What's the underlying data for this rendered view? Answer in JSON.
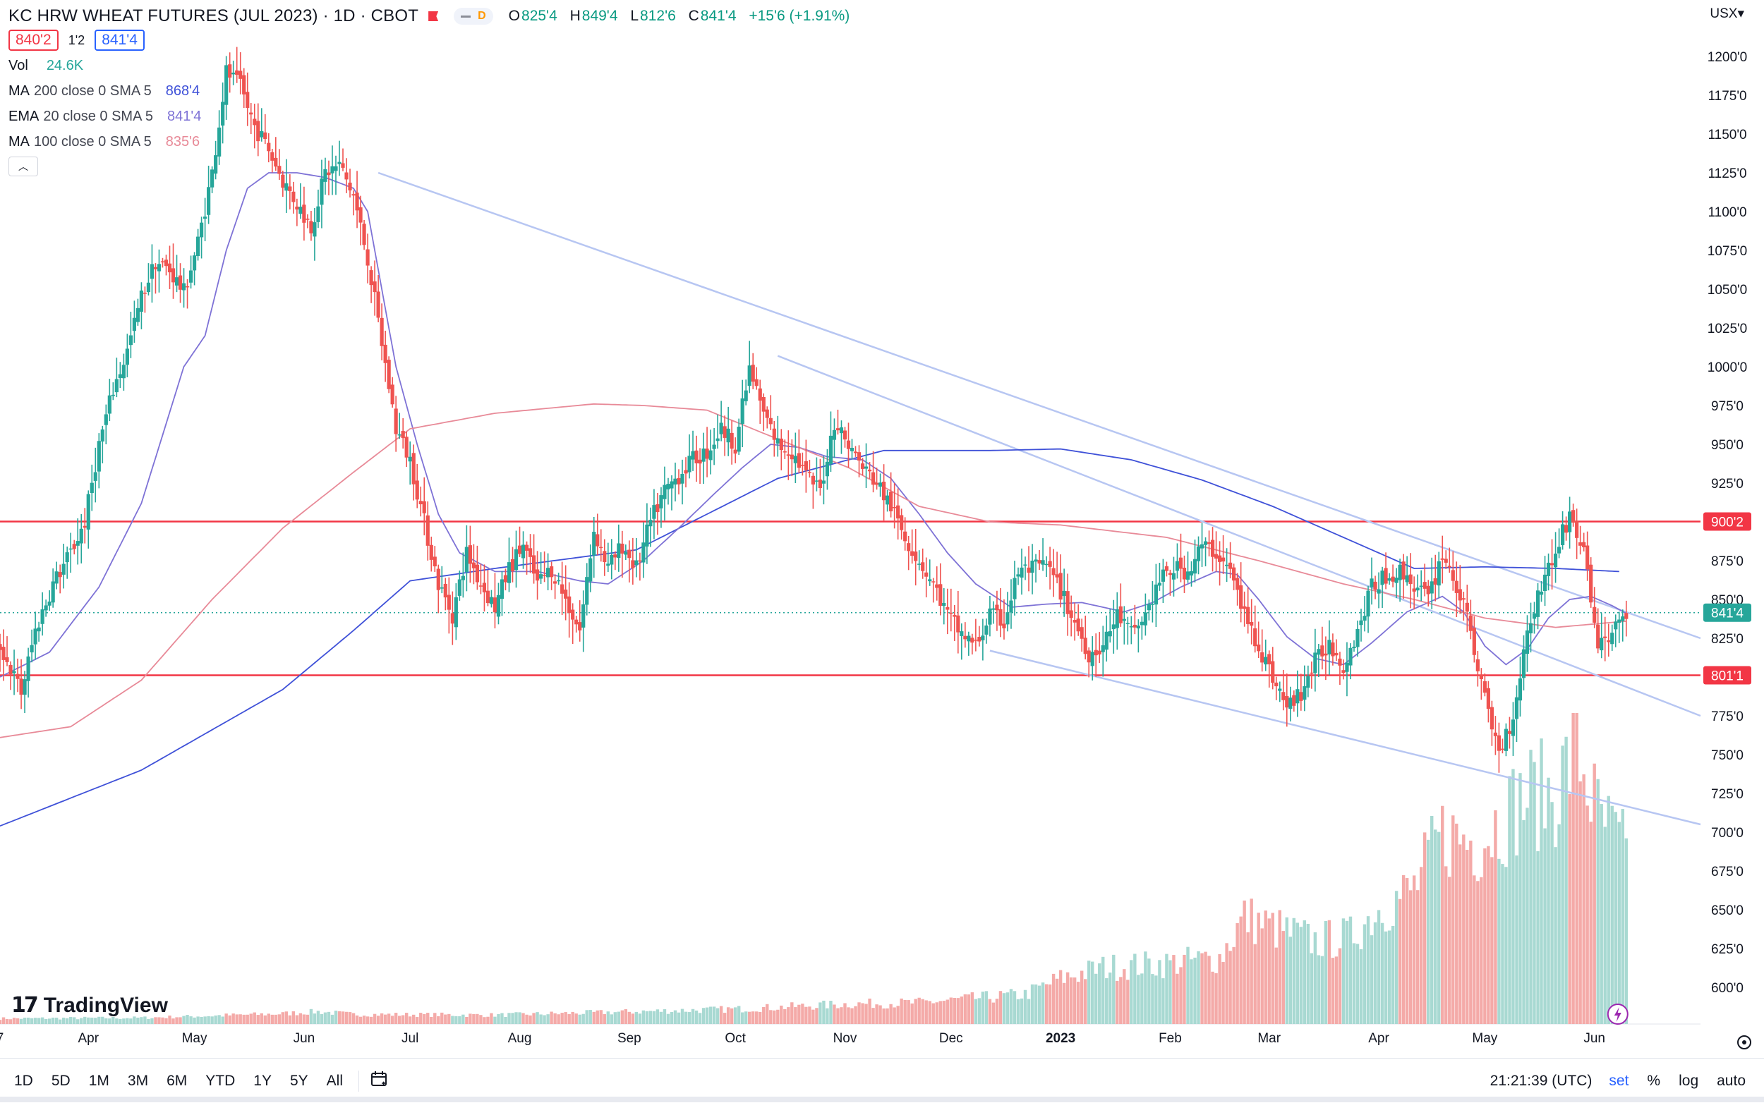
{
  "header": {
    "symbol_title": "KC HRW WHEAT FUTURES (JUL 2023) · 1D · CBOT",
    "pill_letter": "D",
    "ohlc": {
      "o_label": "O",
      "o": "825'4",
      "h_label": "H",
      "h": "849'4",
      "l_label": "L",
      "l": "812'6",
      "c_label": "C",
      "c": "841'4",
      "change": "+15'6 (+1.91%)"
    },
    "bid": "840'2",
    "spread": "1'2",
    "ask": "841'4",
    "currency": "USX▾"
  },
  "indicators": [
    {
      "label": "Vol",
      "params": "",
      "value": "24.6K",
      "color": "#26a69a"
    },
    {
      "label": "MA",
      "params": "200 close 0 SMA 5",
      "value": "868'4",
      "color": "#3f51d8"
    },
    {
      "label": "EMA",
      "params": "20 close 0 SMA 5",
      "value": "841'4",
      "color": "#7e72d6"
    },
    {
      "label": "MA",
      "params": "100 close 0 SMA 5",
      "value": "835'6",
      "color": "#e88a98"
    }
  ],
  "collapse_icon": "chevron-up",
  "brand": {
    "mark": "17",
    "name": "TradingView"
  },
  "bottom": {
    "ranges": [
      "1D",
      "5D",
      "1M",
      "3M",
      "6M",
      "YTD",
      "1Y",
      "5Y",
      "All"
    ],
    "time": "21:21:39 (UTC)",
    "options": [
      "set",
      "%",
      "log",
      "auto"
    ]
  },
  "colors": {
    "up": "#26a69a",
    "down": "#ef5350",
    "vol_up": "#a8d9d2",
    "vol_down": "#f4aaa8",
    "hline": "#f23645",
    "trend": "#b7c6f2"
  },
  "chart_data": {
    "type": "candlestick",
    "title": "KC HRW WHEAT FUTURES (JUL 2023) · 1D · CBOT",
    "price_unit": "USX (cents, eighths notation)",
    "ylim": [
      582,
      1233
    ],
    "y_ticks": [
      {
        "value": 1200,
        "label": "1200'0"
      },
      {
        "value": 1175,
        "label": "1175'0"
      },
      {
        "value": 1150,
        "label": "1150'0"
      },
      {
        "value": 1125,
        "label": "1125'0"
      },
      {
        "value": 1100,
        "label": "1100'0"
      },
      {
        "value": 1075,
        "label": "1075'0"
      },
      {
        "value": 1050,
        "label": "1050'0"
      },
      {
        "value": 1025,
        "label": "1025'0"
      },
      {
        "value": 1000,
        "label": "1000'0"
      },
      {
        "value": 975,
        "label": "975'0"
      },
      {
        "value": 950,
        "label": "950'0"
      },
      {
        "value": 925,
        "label": "925'0"
      },
      {
        "value": 900,
        "label": "900'0"
      },
      {
        "value": 875,
        "label": "875'0"
      },
      {
        "value": 850,
        "label": "850'0"
      },
      {
        "value": 825,
        "label": "825'0"
      },
      {
        "value": 800,
        "label": "800'0"
      },
      {
        "value": 775,
        "label": "775'0"
      },
      {
        "value": 750,
        "label": "750'0"
      },
      {
        "value": 725,
        "label": "725'0"
      },
      {
        "value": 700,
        "label": "700'0"
      },
      {
        "value": 675,
        "label": "675'0"
      },
      {
        "value": 650,
        "label": "650'0"
      },
      {
        "value": 625,
        "label": "625'0"
      },
      {
        "value": 600,
        "label": "600'0"
      }
    ],
    "x_ticks": [
      {
        "day": 0,
        "label": "7",
        "bold": false
      },
      {
        "day": 25,
        "label": "Apr",
        "bold": false
      },
      {
        "day": 55,
        "label": "May",
        "bold": false
      },
      {
        "day": 86,
        "label": "Jun",
        "bold": false
      },
      {
        "day": 116,
        "label": "Jul",
        "bold": false
      },
      {
        "day": 147,
        "label": "Aug",
        "bold": false
      },
      {
        "day": 178,
        "label": "Sep",
        "bold": false
      },
      {
        "day": 208,
        "label": "Oct",
        "bold": false
      },
      {
        "day": 239,
        "label": "Nov",
        "bold": false
      },
      {
        "day": 269,
        "label": "Dec",
        "bold": false
      },
      {
        "day": 300,
        "label": "2023",
        "bold": true
      },
      {
        "day": 331,
        "label": "Feb",
        "bold": false
      },
      {
        "day": 359,
        "label": "Mar",
        "bold": false
      },
      {
        "day": 390,
        "label": "Apr",
        "bold": false
      },
      {
        "day": 420,
        "label": "May",
        "bold": false
      },
      {
        "day": 451,
        "label": "Jun",
        "bold": false
      }
    ],
    "x_range_days": [
      0,
      481
    ],
    "price_keypoints": [
      [
        0,
        820
      ],
      [
        3,
        805
      ],
      [
        6,
        790
      ],
      [
        10,
        830
      ],
      [
        15,
        860
      ],
      [
        20,
        880
      ],
      [
        24,
        900
      ],
      [
        28,
        950
      ],
      [
        32,
        985
      ],
      [
        36,
        1010
      ],
      [
        40,
        1045
      ],
      [
        44,
        1068
      ],
      [
        48,
        1062
      ],
      [
        52,
        1048
      ],
      [
        56,
        1080
      ],
      [
        60,
        1125
      ],
      [
        64,
        1190
      ],
      [
        68,
        1180
      ],
      [
        72,
        1155
      ],
      [
        76,
        1140
      ],
      [
        80,
        1120
      ],
      [
        84,
        1105
      ],
      [
        88,
        1090
      ],
      [
        92,
        1125
      ],
      [
        96,
        1130
      ],
      [
        100,
        1110
      ],
      [
        104,
        1070
      ],
      [
        108,
        1015
      ],
      [
        112,
        960
      ],
      [
        116,
        940
      ],
      [
        120,
        900
      ],
      [
        124,
        860
      ],
      [
        128,
        840
      ],
      [
        132,
        880
      ],
      [
        136,
        860
      ],
      [
        140,
        845
      ],
      [
        144,
        870
      ],
      [
        148,
        885
      ],
      [
        152,
        860
      ],
      [
        156,
        870
      ],
      [
        160,
        850
      ],
      [
        164,
        830
      ],
      [
        168,
        895
      ],
      [
        172,
        870
      ],
      [
        176,
        885
      ],
      [
        180,
        870
      ],
      [
        184,
        900
      ],
      [
        188,
        920
      ],
      [
        192,
        930
      ],
      [
        196,
        940
      ],
      [
        200,
        945
      ],
      [
        204,
        960
      ],
      [
        208,
        950
      ],
      [
        212,
        998
      ],
      [
        216,
        970
      ],
      [
        220,
        950
      ],
      [
        224,
        945
      ],
      [
        228,
        930
      ],
      [
        232,
        920
      ],
      [
        236,
        965
      ],
      [
        240,
        950
      ],
      [
        244,
        935
      ],
      [
        248,
        925
      ],
      [
        252,
        910
      ],
      [
        256,
        890
      ],
      [
        260,
        875
      ],
      [
        264,
        860
      ],
      [
        268,
        840
      ],
      [
        272,
        828
      ],
      [
        276,
        820
      ],
      [
        280,
        840
      ],
      [
        284,
        835
      ],
      [
        288,
        868
      ],
      [
        292,
        870
      ],
      [
        296,
        872
      ],
      [
        300,
        855
      ],
      [
        304,
        835
      ],
      [
        308,
        815
      ],
      [
        312,
        820
      ],
      [
        316,
        840
      ],
      [
        320,
        828
      ],
      [
        324,
        840
      ],
      [
        328,
        862
      ],
      [
        332,
        870
      ],
      [
        336,
        868
      ],
      [
        340,
        885
      ],
      [
        344,
        880
      ],
      [
        348,
        868
      ],
      [
        352,
        840
      ],
      [
        356,
        820
      ],
      [
        360,
        800
      ],
      [
        364,
        780
      ],
      [
        368,
        790
      ],
      [
        372,
        810
      ],
      [
        376,
        822
      ],
      [
        380,
        808
      ],
      [
        384,
        830
      ],
      [
        388,
        858
      ],
      [
        392,
        865
      ],
      [
        396,
        868
      ],
      [
        400,
        860
      ],
      [
        404,
        850
      ],
      [
        408,
        880
      ],
      [
        412,
        858
      ],
      [
        416,
        830
      ],
      [
        420,
        785
      ],
      [
        424,
        752
      ],
      [
        428,
        775
      ],
      [
        432,
        830
      ],
      [
        436,
        860
      ],
      [
        440,
        880
      ],
      [
        444,
        905
      ],
      [
        448,
        880
      ],
      [
        452,
        820
      ],
      [
        456,
        828
      ],
      [
        460,
        841
      ]
    ],
    "moving_averages": [
      {
        "name": "MA 200",
        "color": "#3f51d8",
        "points": [
          [
            0,
            704
          ],
          [
            40,
            740
          ],
          [
            80,
            792
          ],
          [
            100,
            830
          ],
          [
            116,
            862
          ],
          [
            140,
            870
          ],
          [
            180,
            882
          ],
          [
            220,
            928
          ],
          [
            250,
            946
          ],
          [
            280,
            946
          ],
          [
            300,
            947
          ],
          [
            320,
            940
          ],
          [
            340,
            927
          ],
          [
            360,
            910
          ],
          [
            380,
            890
          ],
          [
            400,
            870
          ],
          [
            420,
            871
          ],
          [
            440,
            870
          ],
          [
            458,
            868
          ]
        ]
      },
      {
        "name": "EMA 20",
        "color": "#7e72d6",
        "points": [
          [
            0,
            800
          ],
          [
            14,
            816
          ],
          [
            28,
            858
          ],
          [
            40,
            912
          ],
          [
            52,
            1000
          ],
          [
            58,
            1020
          ],
          [
            64,
            1075
          ],
          [
            70,
            1115
          ],
          [
            76,
            1125
          ],
          [
            84,
            1125
          ],
          [
            92,
            1122
          ],
          [
            100,
            1115
          ],
          [
            104,
            1100
          ],
          [
            112,
            1000
          ],
          [
            118,
            950
          ],
          [
            124,
            905
          ],
          [
            130,
            880
          ],
          [
            140,
            868
          ],
          [
            152,
            868
          ],
          [
            164,
            862
          ],
          [
            172,
            860
          ],
          [
            182,
            875
          ],
          [
            192,
            896
          ],
          [
            202,
            918
          ],
          [
            210,
            935
          ],
          [
            218,
            950
          ],
          [
            226,
            948
          ],
          [
            234,
            942
          ],
          [
            244,
            940
          ],
          [
            252,
            928
          ],
          [
            260,
            905
          ],
          [
            268,
            880
          ],
          [
            276,
            860
          ],
          [
            286,
            845
          ],
          [
            296,
            847
          ],
          [
            306,
            848
          ],
          [
            318,
            842
          ],
          [
            326,
            848
          ],
          [
            334,
            858
          ],
          [
            344,
            868
          ],
          [
            350,
            866
          ],
          [
            356,
            850
          ],
          [
            364,
            826
          ],
          [
            372,
            812
          ],
          [
            380,
            808
          ],
          [
            388,
            822
          ],
          [
            398,
            842
          ],
          [
            408,
            852
          ],
          [
            414,
            842
          ],
          [
            420,
            820
          ],
          [
            426,
            808
          ],
          [
            432,
            818
          ],
          [
            438,
            838
          ],
          [
            444,
            850
          ],
          [
            450,
            852
          ],
          [
            456,
            846
          ],
          [
            460,
            841
          ]
        ]
      },
      {
        "name": "MA 100",
        "color": "#e88a98",
        "points": [
          [
            0,
            761
          ],
          [
            20,
            768
          ],
          [
            40,
            798
          ],
          [
            60,
            850
          ],
          [
            80,
            896
          ],
          [
            100,
            932
          ],
          [
            116,
            960
          ],
          [
            140,
            970
          ],
          [
            168,
            976
          ],
          [
            182,
            975
          ],
          [
            200,
            972
          ],
          [
            215,
            958
          ],
          [
            240,
            935
          ],
          [
            260,
            910
          ],
          [
            280,
            900
          ],
          [
            300,
            898
          ],
          [
            330,
            890
          ],
          [
            356,
            875
          ],
          [
            380,
            860
          ],
          [
            400,
            850
          ],
          [
            420,
            838
          ],
          [
            440,
            832
          ],
          [
            460,
            836
          ]
        ]
      }
    ],
    "horizontal_lines": [
      {
        "price": 900.25,
        "label": "900'2"
      },
      {
        "price": 801.125,
        "label": "801'1"
      }
    ],
    "last_price": {
      "price": 841.5,
      "label": "841'4"
    },
    "trend_lines": [
      {
        "from": [
          107,
          1125
        ],
        "to": [
          481,
          825
        ]
      },
      {
        "from": [
          220,
          1007
        ],
        "to": [
          481,
          775
        ]
      },
      {
        "from": [
          280,
          817
        ],
        "to": [
          481,
          705
        ]
      }
    ],
    "volume": {
      "scale_max": 43000,
      "keypoints": [
        [
          0,
          800
        ],
        [
          40,
          900
        ],
        [
          80,
          1500
        ],
        [
          90,
          1800
        ],
        [
          100,
          1400
        ],
        [
          140,
          1300
        ],
        [
          180,
          1800
        ],
        [
          210,
          2200
        ],
        [
          240,
          2900
        ],
        [
          260,
          3100
        ],
        [
          275,
          3700
        ],
        [
          290,
          4300
        ],
        [
          300,
          6600
        ],
        [
          312,
          8200
        ],
        [
          330,
          8800
        ],
        [
          345,
          9600
        ],
        [
          352,
          15500
        ],
        [
          360,
          14000
        ],
        [
          372,
          12000
        ],
        [
          382,
          12700
        ],
        [
          390,
          16700
        ],
        [
          400,
          19600
        ],
        [
          408,
          27500
        ],
        [
          418,
          26500
        ],
        [
          424,
          29500
        ],
        [
          432,
          33000
        ],
        [
          440,
          33500
        ],
        [
          446,
          40500
        ],
        [
          452,
          30000
        ],
        [
          460,
          24600
        ]
      ],
      "last_value": "24.6K"
    }
  }
}
